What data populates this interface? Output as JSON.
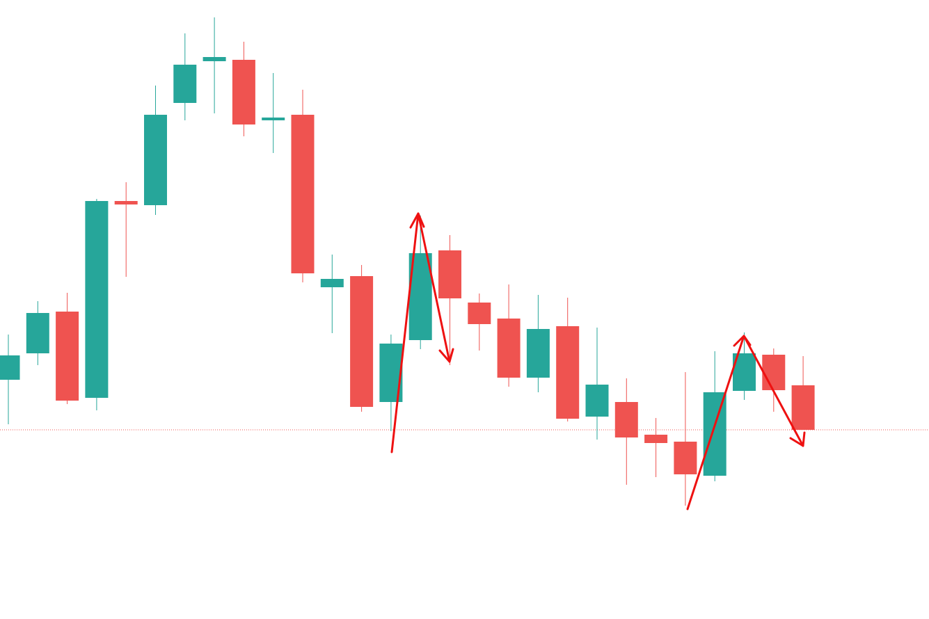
{
  "chart_data": {
    "type": "candlestick",
    "up_color": "#26a69a",
    "down_color": "#ef5350",
    "price_line_color": "#ef5350",
    "ylim": [
      0,
      89
    ],
    "open": [
      34.4,
      38.2,
      44.2,
      31.8,
      60.1,
      59.5,
      74.2,
      80.2,
      80.4,
      71.7,
      72.5,
      47.7,
      49.3,
      31.2,
      40.1,
      53.0,
      45.5,
      43.2,
      34.7,
      42.1,
      29.1,
      31.2,
      26.5,
      25.5,
      20.6,
      32.8,
      38.0,
      33.6
    ],
    "high": [
      40.9,
      45.7,
      46.9,
      60.4,
      62.8,
      76.7,
      84.2,
      86.5,
      83.0,
      78.5,
      76.1,
      52.4,
      50.9,
      40.9,
      58.0,
      55.2,
      46.8,
      48.1,
      46.6,
      46.2,
      41.9,
      34.6,
      28.9,
      35.5,
      38.5,
      41.2,
      38.9,
      37.8
    ],
    "low": [
      28.0,
      36.5,
      30.9,
      30.0,
      49.2,
      58.1,
      71.7,
      72.7,
      69.4,
      67.0,
      48.4,
      41.1,
      29.8,
      27.0,
      38.8,
      36.5,
      38.6,
      33.4,
      32.6,
      28.4,
      25.8,
      19.3,
      20.4,
      16.3,
      19.8,
      31.5,
      29.8,
      27.2
    ],
    "close": [
      37.9,
      44.0,
      31.4,
      60.1,
      59.6,
      72.5,
      79.7,
      80.8,
      71.1,
      72.1,
      49.7,
      48.9,
      30.5,
      39.6,
      52.6,
      46.1,
      42.4,
      34.7,
      41.7,
      28.8,
      33.7,
      26.1,
      25.3,
      20.8,
      32.6,
      38.2,
      32.9,
      27.2
    ]
  }
}
